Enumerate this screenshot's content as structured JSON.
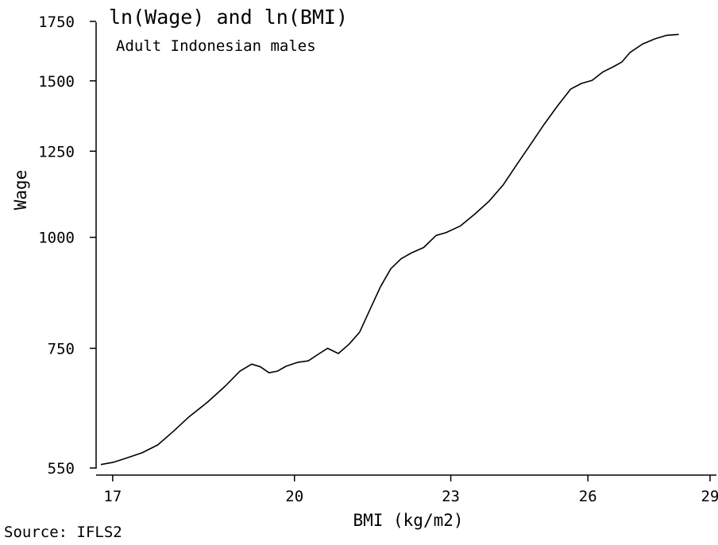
{
  "chart_data": {
    "type": "line",
    "title": "ln(Wage) and ln(BMI)",
    "subtitle": "Adult Indonesian males",
    "xlabel": "BMI (kg/m2)",
    "ylabel": "Wage",
    "source": "Source: IFLS2",
    "xscale": "log",
    "yscale": "log",
    "xlim": [
      16.75,
      29
    ],
    "ylim": [
      540,
      1775
    ],
    "xticks": [
      17,
      20,
      23,
      26,
      29
    ],
    "yticks": [
      550,
      750,
      1000,
      1250,
      1500,
      1750
    ],
    "grid": false,
    "legend": "none",
    "line_color": "#000000",
    "series": [
      {
        "x": [
          16.82,
          17.0,
          17.2,
          17.45,
          17.7,
          17.95,
          18.2,
          18.5,
          18.8,
          19.05,
          19.25,
          19.4,
          19.55,
          19.7,
          19.85,
          20.05,
          20.25,
          20.45,
          20.6,
          20.8,
          21.0,
          21.2,
          21.4,
          21.6,
          21.8,
          22.0,
          22.2,
          22.45,
          22.7,
          22.9,
          23.2,
          23.5,
          23.8,
          24.1,
          24.4,
          24.7,
          25.0,
          25.3,
          25.6,
          25.85,
          26.1,
          26.35,
          26.6,
          26.8,
          27.0,
          27.3,
          27.6,
          27.9,
          28.2
        ],
        "y": [
          555,
          558,
          564,
          572,
          584,
          605,
          628,
          652,
          680,
          707,
          720,
          715,
          704,
          707,
          716,
          723,
          726,
          740,
          750,
          740,
          758,
          782,
          830,
          880,
          922,
          946,
          960,
          974,
          1005,
          1012,
          1030,
          1062,
          1098,
          1145,
          1208,
          1272,
          1340,
          1405,
          1468,
          1490,
          1502,
          1535,
          1556,
          1575,
          1615,
          1650,
          1672,
          1688,
          1692
        ]
      }
    ]
  }
}
